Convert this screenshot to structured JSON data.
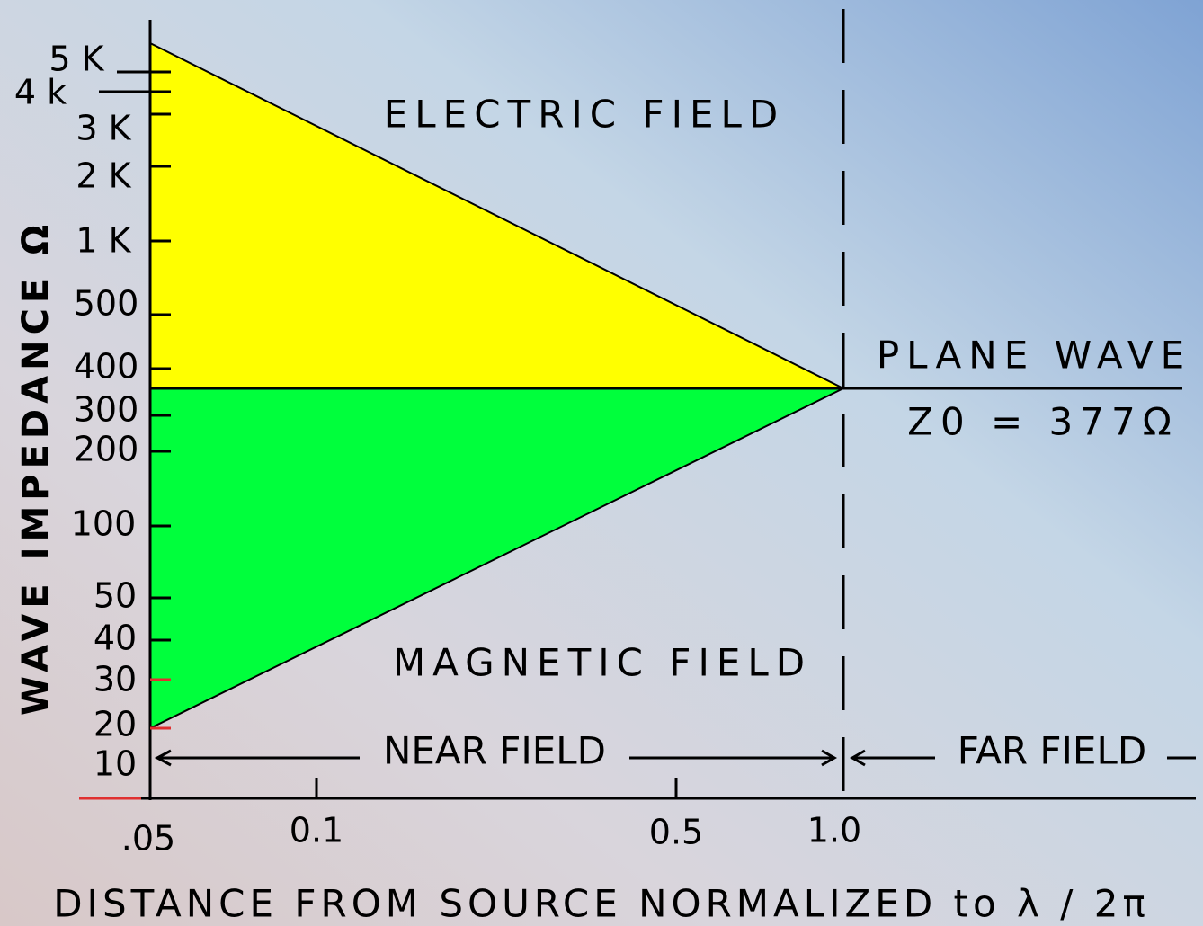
{
  "title_y": "WAVE IMPEDANCE Ω",
  "title_x": "DISTANCE FROM SOURCE NORMALIZED to λ / 2π",
  "regions": {
    "electric": "ELECTRIC FIELD",
    "magnetic": "MAGNETIC FIELD",
    "plane": "PLANE WAVE",
    "z0": "Z0 = 377Ω"
  },
  "zones": {
    "near": "NEAR FIELD",
    "far": "FAR FIELD"
  },
  "y_ticks": [
    "5 K",
    "4 k",
    "3 K",
    "2 K",
    "1 K",
    "500",
    "400",
    "300",
    "200",
    "100",
    "50",
    "40",
    "30",
    "20",
    "10"
  ],
  "x_ticks": [
    ".05",
    "0.1",
    "0.5",
    "1.0"
  ]
}
